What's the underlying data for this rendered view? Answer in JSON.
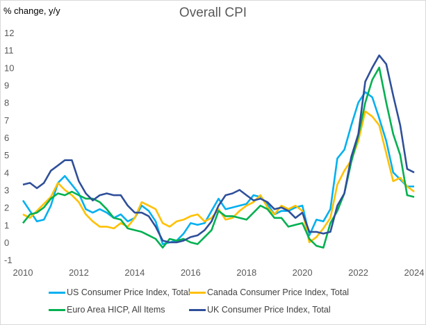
{
  "chart_data": {
    "type": "line",
    "title": "Overall CPI",
    "ylabel": "% change, y/y",
    "xlabel": "",
    "ylim": [
      -1,
      12
    ],
    "yticks": [
      -1,
      0,
      1,
      2,
      3,
      4,
      5,
      6,
      7,
      8,
      9,
      10,
      11,
      12
    ],
    "xlim": [
      2010,
      2024
    ],
    "xticks": [
      "2010",
      "2012",
      "2014",
      "2016",
      "2018",
      "2020",
      "2022",
      "2024"
    ],
    "grid": false,
    "legend": "bottom",
    "x_frequency": "quarterly, 2010Q1 to 2024Q1",
    "series": [
      {
        "name": "US Consumer Price Index, Total",
        "color": "#00b0f0",
        "values": [
          2.4,
          1.8,
          1.2,
          1.3,
          2.1,
          3.4,
          3.8,
          3.3,
          2.8,
          1.9,
          1.7,
          1.9,
          1.7,
          1.4,
          1.6,
          1.2,
          1.4,
          2.1,
          1.8,
          1.2,
          -0.1,
          0.0,
          0.1,
          0.5,
          1.1,
          1.0,
          1.1,
          1.8,
          2.5,
          1.9,
          2.0,
          2.1,
          2.2,
          2.7,
          2.6,
          2.2,
          1.6,
          1.8,
          1.8,
          2.0,
          2.1,
          0.4,
          1.3,
          1.2,
          1.9,
          4.8,
          5.3,
          6.7,
          8.0,
          8.6,
          8.3,
          7.1,
          5.8,
          4.0,
          3.6,
          3.2,
          3.2
        ]
      },
      {
        "name": "Canada Consumer Price Index, Total",
        "color": "#ffc000",
        "values": [
          1.6,
          1.4,
          1.8,
          2.2,
          2.6,
          3.4,
          3.0,
          2.7,
          2.3,
          1.6,
          1.2,
          0.9,
          0.9,
          0.8,
          1.1,
          0.9,
          1.4,
          2.3,
          2.1,
          1.9,
          1.1,
          0.9,
          1.2,
          1.3,
          1.5,
          1.6,
          1.2,
          1.4,
          1.9,
          1.3,
          1.4,
          1.8,
          2.1,
          2.3,
          2.7,
          2.0,
          1.6,
          2.1,
          1.9,
          2.1,
          1.8,
          0.0,
          0.3,
          0.8,
          1.4,
          3.3,
          4.1,
          4.7,
          5.8,
          7.5,
          7.2,
          6.7,
          5.1,
          3.5,
          3.7,
          3.2,
          2.9
        ]
      },
      {
        "name": "Euro Area HICP, All Items",
        "color": "#00b050",
        "values": [
          1.1,
          1.6,
          1.7,
          2.0,
          2.5,
          2.8,
          2.7,
          2.9,
          2.7,
          2.5,
          2.5,
          2.3,
          1.9,
          1.4,
          1.3,
          0.8,
          0.7,
          0.6,
          0.4,
          0.2,
          -0.3,
          0.2,
          0.1,
          0.2,
          0.0,
          -0.1,
          0.3,
          0.7,
          1.8,
          1.5,
          1.5,
          1.4,
          1.3,
          1.7,
          2.1,
          1.9,
          1.4,
          1.4,
          0.9,
          1.0,
          1.1,
          0.2,
          -0.2,
          -0.3,
          1.1,
          1.8,
          2.8,
          4.6,
          6.1,
          8.0,
          9.3,
          10.0,
          8.0,
          6.2,
          5.0,
          2.7,
          2.6
        ]
      },
      {
        "name": "UK Consumer Price Index, Total",
        "color": "#2f4f9a",
        "values": [
          3.3,
          3.4,
          3.1,
          3.4,
          4.1,
          4.4,
          4.7,
          4.7,
          3.5,
          2.8,
          2.4,
          2.7,
          2.8,
          2.7,
          2.7,
          2.1,
          1.7,
          1.7,
          1.5,
          0.9,
          0.1,
          0.0,
          0.0,
          0.1,
          0.3,
          0.4,
          0.7,
          1.2,
          2.1,
          2.7,
          2.8,
          3.0,
          2.7,
          2.4,
          2.5,
          2.3,
          1.9,
          2.0,
          1.8,
          1.4,
          1.7,
          0.6,
          0.6,
          0.5,
          0.6,
          2.1,
          2.8,
          4.9,
          6.2,
          9.2,
          10.0,
          10.7,
          10.2,
          8.4,
          6.7,
          4.2,
          4.0
        ]
      }
    ]
  }
}
